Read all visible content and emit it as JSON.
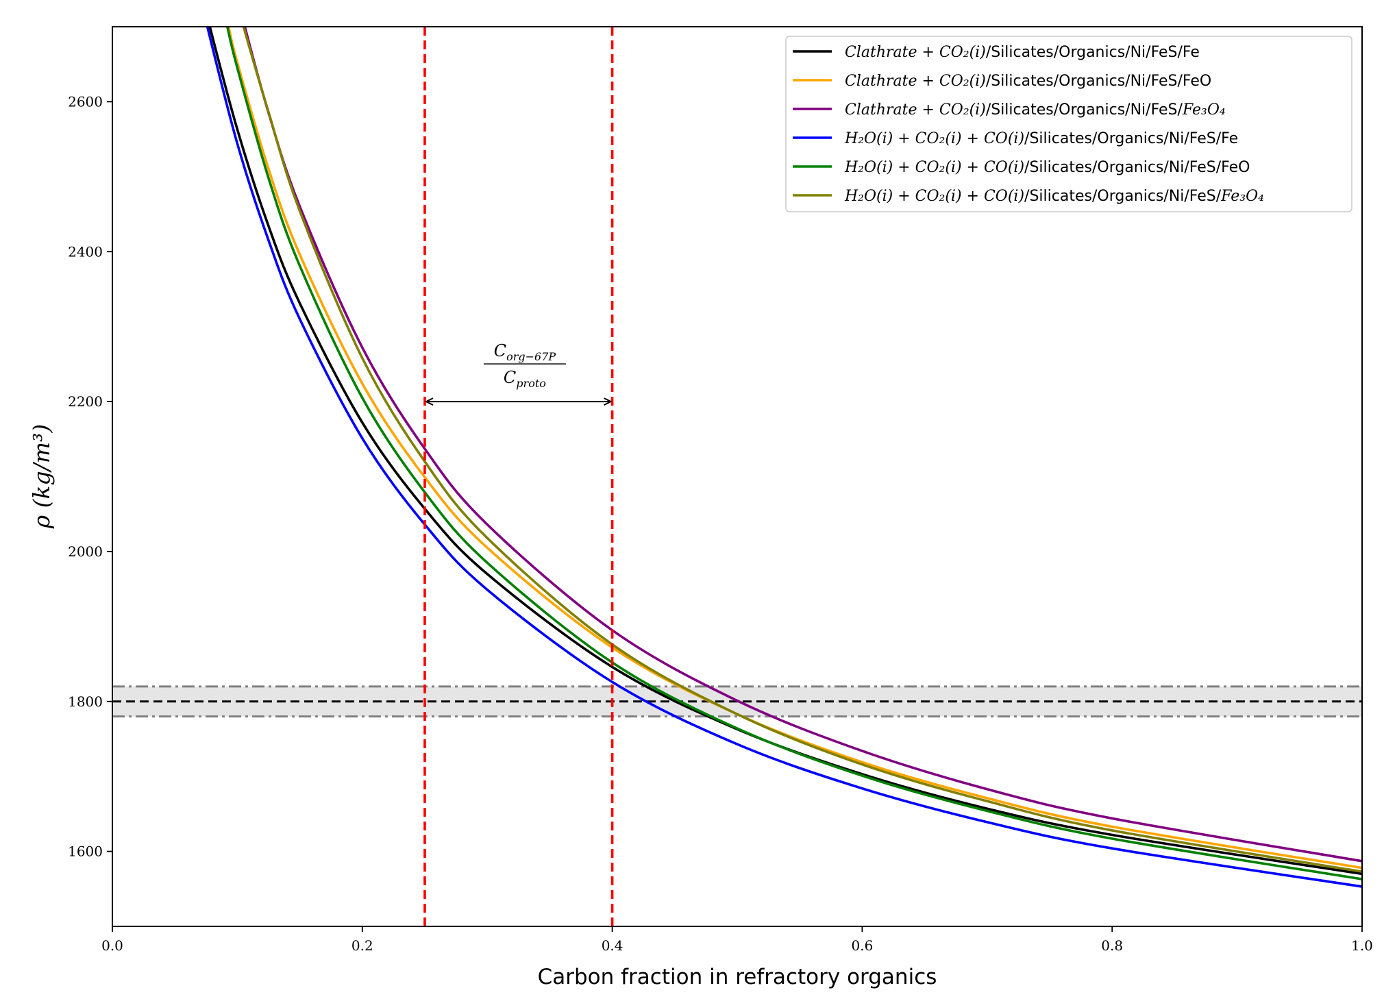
{
  "chart_data": {
    "type": "line",
    "title": "",
    "xlabel": "Carbon fraction in refractory organics",
    "ylabel": "ρ (kg/m³)",
    "xlim": [
      0.0,
      1.0
    ],
    "ylim": [
      1500,
      2700
    ],
    "xticks": [
      "0.0",
      "0.2",
      "0.4",
      "0.6",
      "0.8",
      "1.0"
    ],
    "yticks": [
      "1600",
      "1800",
      "2000",
      "2200",
      "2400",
      "2600"
    ],
    "grid": false,
    "legend_position": "top-right",
    "series": [
      {
        "name": "Clathrate + CO₂(i)/Silicates/Organics/Ni/FeS/Fe",
        "math": "Clathrate + CO₂(i)",
        "text": "/Silicates/Organics/Ni/FeS/Fe",
        "tail": "",
        "color": "#000000",
        "x": [
          0.078,
          0.1,
          0.125,
          0.15,
          0.2,
          0.25,
          0.3,
          0.4,
          0.5,
          0.6,
          0.7,
          0.8,
          1.0
        ],
        "y": [
          2700,
          2563,
          2434,
          2331,
          2172,
          2057,
          1970,
          1846,
          1763,
          1703,
          1657,
          1622,
          1570
        ]
      },
      {
        "name": "Clathrate + CO₂(i)/Silicates/Organics/Ni/FeS/FeO",
        "math": "Clathrate + CO₂(i)",
        "text": "/Silicates/Organics/Ni/FeS/FeO",
        "tail": "",
        "color": "#ffa500",
        "x": [
          0.093,
          0.1,
          0.125,
          0.15,
          0.2,
          0.25,
          0.3,
          0.4,
          0.5,
          0.6,
          0.7,
          0.8,
          1.0
        ],
        "y": [
          2700,
          2652,
          2510,
          2396,
          2224,
          2099,
          2005,
          1872,
          1783,
          1719,
          1671,
          1633,
          1578
        ]
      },
      {
        "name": "Clathrate + CO₂(i)/Silicates/Organics/Ni/FeS/Fe₃O₄",
        "math": "Clathrate + CO₂(i)",
        "text": "/Silicates/Organics/Ni/FeS/",
        "tail": "Fe₃O₄",
        "color": "#800080",
        "x": [
          0.106,
          0.125,
          0.15,
          0.2,
          0.25,
          0.3,
          0.4,
          0.5,
          0.6,
          0.7,
          0.8,
          1.0
        ],
        "y": [
          2700,
          2585,
          2460,
          2272,
          2137,
          2036,
          1895,
          1801,
          1734,
          1683,
          1644,
          1587
        ]
      },
      {
        "name": "H₂O(i) + CO₂(i) + CO(i)/Silicates/Organics/Ni/FeS/Fe",
        "math": "H₂O(i) + CO₂(i) + CO(i)",
        "text": "/Silicates/Organics/Ni/FeS/Fe",
        "tail": "",
        "color": "#0000ff",
        "x": [
          0.076,
          0.1,
          0.125,
          0.15,
          0.2,
          0.25,
          0.3,
          0.4,
          0.5,
          0.6,
          0.7,
          0.8,
          1.0
        ],
        "y": [
          2700,
          2544,
          2415,
          2310,
          2151,
          2036,
          1949,
          1826,
          1743,
          1684,
          1639,
          1604,
          1553
        ]
      },
      {
        "name": "H₂O(i) + CO₂(i) + CO(i)/Silicates/Organics/Ni/FeS/FeO",
        "math": "H₂O(i) + CO₂(i) + CO(i)",
        "text": "/Silicates/Organics/Ni/FeS/FeO",
        "tail": "",
        "color": "#008000",
        "x": [
          0.092,
          0.1,
          0.125,
          0.15,
          0.2,
          0.25,
          0.3,
          0.4,
          0.5,
          0.6,
          0.7,
          0.8,
          1.0
        ],
        "y": [
          2700,
          2645,
          2498,
          2381,
          2205,
          2079,
          1985,
          1852,
          1764,
          1701,
          1654,
          1617,
          1563
        ]
      },
      {
        "name": "H₂O(i) + CO₂(i) + CO(i)/Silicates/Organics/Ni/FeS/Fe₃O₄",
        "math": "H₂O(i) + CO₂(i) + CO(i)",
        "text": "/Silicates/Organics/Ni/FeS/",
        "tail": "Fe₃O₄",
        "color": "#808000",
        "x": [
          0.105,
          0.125,
          0.15,
          0.2,
          0.25,
          0.3,
          0.4,
          0.5,
          0.6,
          0.7,
          0.8,
          1.0
        ],
        "y": [
          2700,
          2586,
          2454,
          2258,
          2120,
          2018,
          1876,
          1783,
          1716,
          1667,
          1628,
          1573
        ]
      }
    ],
    "reference_lines": {
      "horizontal_density": 1800,
      "band": [
        1780,
        1820
      ],
      "vertical_lines": [
        0.25,
        0.4
      ],
      "colors": {
        "red": "#ff0000",
        "band_fill": "#e5e5e5",
        "band_edge": "#808080",
        "density_line": "#000000"
      }
    },
    "annotation": {
      "numerator": "C",
      "numerator_sub": "org−67P",
      "denominator": "C",
      "denominator_sub": "proto",
      "arrow_from": 0.25,
      "arrow_to": 0.4,
      "arrow_y": 2200,
      "x_center": 0.33
    }
  }
}
